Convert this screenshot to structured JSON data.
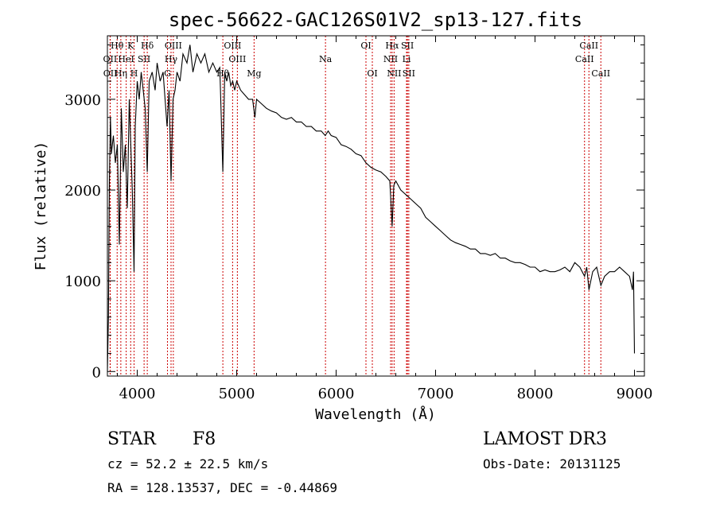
{
  "chart_data": {
    "type": "line",
    "title": "spec-56622-GAC126S01V2_sp13-127.fits",
    "xlabel": "Wavelength (Å)",
    "ylabel": "Flux (relative)",
    "xlim": [
      3700,
      9100
    ],
    "ylim": [
      -50,
      3700
    ],
    "xticks": [
      4000,
      5000,
      6000,
      7000,
      8000,
      9000
    ],
    "yticks": [
      0,
      1000,
      2000,
      3000
    ],
    "series": [
      {
        "name": "flux",
        "x": [
          3700,
          3710,
          3720,
          3730,
          3740,
          3760,
          3780,
          3800,
          3820,
          3840,
          3860,
          3880,
          3900,
          3920,
          3935,
          3950,
          3968,
          3980,
          4000,
          4020,
          4040,
          4060,
          4080,
          4101,
          4120,
          4150,
          4180,
          4200,
          4230,
          4260,
          4300,
          4320,
          4340,
          4360,
          4380,
          4400,
          4430,
          4460,
          4500,
          4530,
          4560,
          4600,
          4640,
          4680,
          4720,
          4760,
          4800,
          4830,
          4861,
          4880,
          4900,
          4920,
          4940,
          4960,
          4980,
          5000,
          5040,
          5080,
          5120,
          5160,
          5183,
          5200,
          5250,
          5300,
          5350,
          5400,
          5450,
          5500,
          5550,
          5600,
          5650,
          5700,
          5750,
          5800,
          5850,
          5890,
          5920,
          5950,
          6000,
          6050,
          6100,
          6150,
          6200,
          6250,
          6300,
          6350,
          6400,
          6450,
          6500,
          6540,
          6563,
          6580,
          6600,
          6650,
          6700,
          6750,
          6800,
          6850,
          6900,
          6950,
          7000,
          7050,
          7100,
          7150,
          7200,
          7250,
          7300,
          7350,
          7400,
          7450,
          7500,
          7550,
          7600,
          7650,
          7700,
          7750,
          7800,
          7850,
          7900,
          7950,
          8000,
          8050,
          8100,
          8150,
          8200,
          8250,
          8300,
          8350,
          8400,
          8450,
          8498,
          8520,
          8542,
          8580,
          8620,
          8662,
          8700,
          8750,
          8800,
          8850,
          8900,
          8950,
          8980,
          8990,
          9000
        ],
        "values": [
          0,
          600,
          2100,
          2800,
          2400,
          2600,
          2300,
          2500,
          1400,
          2900,
          2200,
          2500,
          1800,
          3000,
          2500,
          2000,
          1100,
          2700,
          3200,
          3000,
          3300,
          3100,
          2900,
          2200,
          3200,
          3300,
          3100,
          3400,
          3200,
          3300,
          2700,
          3100,
          2100,
          3000,
          3100,
          3300,
          3200,
          3500,
          3400,
          3600,
          3300,
          3500,
          3400,
          3500,
          3300,
          3400,
          3300,
          3350,
          2200,
          3300,
          3200,
          3300,
          3150,
          3200,
          3100,
          3200,
          3100,
          3050,
          3000,
          3000,
          2800,
          3000,
          2950,
          2900,
          2870,
          2850,
          2800,
          2780,
          2800,
          2750,
          2750,
          2700,
          2700,
          2650,
          2650,
          2600,
          2650,
          2600,
          2580,
          2500,
          2480,
          2450,
          2400,
          2380,
          2300,
          2250,
          2220,
          2200,
          2150,
          2100,
          1600,
          2050,
          2100,
          2000,
          1950,
          1900,
          1850,
          1800,
          1700,
          1650,
          1600,
          1550,
          1500,
          1450,
          1420,
          1400,
          1380,
          1350,
          1350,
          1300,
          1300,
          1280,
          1300,
          1250,
          1250,
          1220,
          1200,
          1200,
          1180,
          1150,
          1150,
          1100,
          1120,
          1100,
          1100,
          1120,
          1150,
          1100,
          1200,
          1150,
          1050,
          1150,
          900,
          1100,
          1150,
          950,
          1050,
          1100,
          1100,
          1150,
          1100,
          1050,
          900,
          1100,
          200
        ]
      }
    ],
    "line_labels": [
      {
        "text": "Hθ",
        "x": 3798,
        "row": 1
      },
      {
        "text": "K",
        "x": 3934,
        "row": 1
      },
      {
        "text": "Hδ",
        "x": 4101,
        "row": 1
      },
      {
        "text": "OIII",
        "x": 4363,
        "row": 1
      },
      {
        "text": "OIII",
        "x": 4959,
        "row": 1
      },
      {
        "text": "OI",
        "x": 6300,
        "row": 1
      },
      {
        "text": "Hα",
        "x": 6563,
        "row": 1
      },
      {
        "text": "SII",
        "x": 6717,
        "row": 1
      },
      {
        "text": "CaII",
        "x": 8542,
        "row": 1
      },
      {
        "text": "OII",
        "x": 3727,
        "row": 2
      },
      {
        "text": "HeI",
        "x": 3889,
        "row": 2
      },
      {
        "text": "SII",
        "x": 4069,
        "row": 2
      },
      {
        "text": "Hγ",
        "x": 4340,
        "row": 2
      },
      {
        "text": "OIII",
        "x": 5007,
        "row": 2
      },
      {
        "text": "Na",
        "x": 5893,
        "row": 2
      },
      {
        "text": "NII",
        "x": 6548,
        "row": 2
      },
      {
        "text": "Li",
        "x": 6708,
        "row": 2
      },
      {
        "text": "CaII",
        "x": 8498,
        "row": 2
      },
      {
        "text": "OII",
        "x": 3729,
        "row": 3
      },
      {
        "text": "Hη",
        "x": 3835,
        "row": 3
      },
      {
        "text": "H",
        "x": 3968,
        "row": 3
      },
      {
        "text": "G",
        "x": 4304,
        "row": 3
      },
      {
        "text": "Hβ",
        "x": 4861,
        "row": 3
      },
      {
        "text": "Mg",
        "x": 5175,
        "row": 3
      },
      {
        "text": "OI",
        "x": 6364,
        "row": 3
      },
      {
        "text": "NII",
        "x": 6583,
        "row": 3
      },
      {
        "text": "SII",
        "x": 6731,
        "row": 3
      },
      {
        "text": "CaII",
        "x": 8662,
        "row": 3
      }
    ],
    "marker_lines": [
      3727,
      3729,
      3798,
      3835,
      3889,
      3934,
      3968,
      4069,
      4101,
      4304,
      4340,
      4363,
      4861,
      4959,
      5007,
      5175,
      5893,
      6300,
      6364,
      6548,
      6563,
      6583,
      6708,
      6717,
      6731,
      8498,
      8542,
      8662
    ],
    "marker_color": "#cc0000"
  },
  "info": {
    "class_label": "STAR",
    "subclass": "F8",
    "survey": "LAMOST DR3",
    "redshift": "cz = 52.2 ± 22.5 km/s",
    "obs_date": "Obs-Date: 20131125",
    "coords": "RA = 128.13537, DEC =  -0.44869"
  }
}
